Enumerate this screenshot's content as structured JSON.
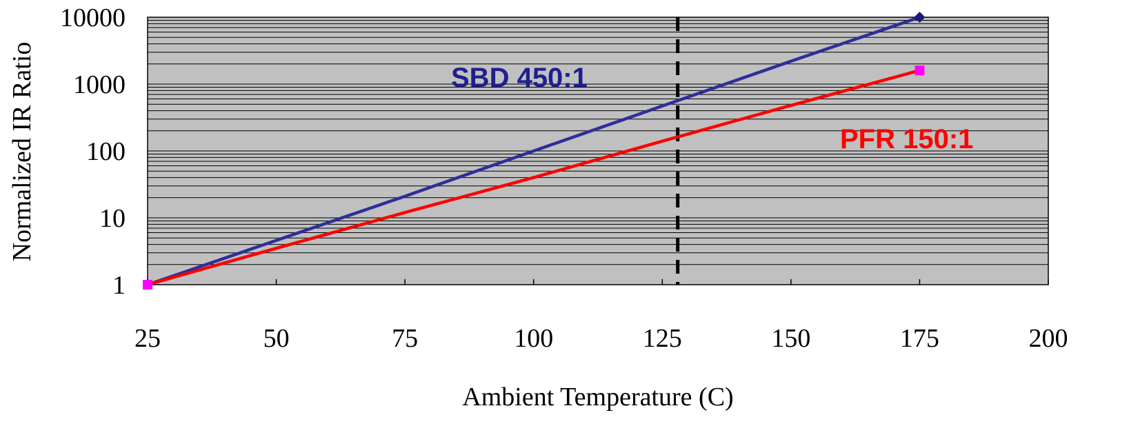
{
  "chart_data": {
    "type": "line",
    "xlabel": "Ambient Temperature (C)",
    "ylabel": "Normalized IR Ratio",
    "xlim": [
      25,
      200
    ],
    "ylim": [
      1,
      10000
    ],
    "yscale": "log",
    "x_ticks": [
      "25",
      "50",
      "75",
      "100",
      "125",
      "150",
      "175",
      "200"
    ],
    "y_ticks": [
      "1",
      "10",
      "100",
      "1000",
      "10000"
    ],
    "grid": "horizontal minor log gridlines",
    "plot_background": "#c0c0c0",
    "vertical_marker": {
      "x": 128,
      "style": "dashed",
      "color": "#000000"
    },
    "series": [
      {
        "name": "SBD 450:1",
        "color": "#2e2e9a",
        "marker_color": "#1a1a7a",
        "end_marker": "diamond",
        "x": [
          25,
          50,
          75,
          100,
          125,
          150,
          175
        ],
        "y": [
          1,
          4.6,
          21,
          100,
          470,
          2200,
          10000
        ]
      },
      {
        "name": "PFR 150:1",
        "color": "#ff0000",
        "marker_color": "#ff00ff",
        "end_marker": "square",
        "x": [
          25,
          50,
          75,
          100,
          125,
          150,
          175
        ],
        "y": [
          1,
          3.5,
          12,
          40,
          140,
          480,
          1600
        ]
      }
    ],
    "annotations": [
      {
        "text": "SBD 450:1",
        "color": "#1f1f8f"
      },
      {
        "text": "PFR 150:1",
        "color": "#ff0000"
      }
    ]
  }
}
